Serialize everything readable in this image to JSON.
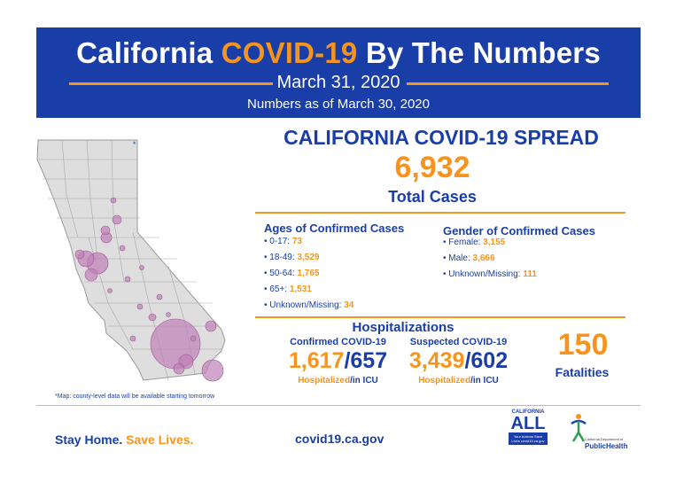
{
  "banner": {
    "title_pre": "California ",
    "title_highlight": "COVID-19",
    "title_post": " By The Numbers",
    "date": "March 31, 2020",
    "as_of": "Numbers as of March 30, 2020"
  },
  "spread": {
    "title": "CALIFORNIA COVID-19 SPREAD",
    "total_cases": "6,932",
    "total_label": "Total Cases"
  },
  "ages": {
    "heading": "Ages of Confirmed Cases",
    "items": [
      {
        "label": "• 0-17: ",
        "value": "73"
      },
      {
        "label": "• 18-49: ",
        "value": "3,529"
      },
      {
        "label": "• 50-64: ",
        "value": "1,765"
      },
      {
        "label": "• 65+: ",
        "value": "1,531"
      },
      {
        "label": "• Unknown/Missing: ",
        "value": "34"
      }
    ]
  },
  "gender": {
    "heading": "Gender of Confirmed Cases",
    "items": [
      {
        "label": "• Female: ",
        "value": "3,155"
      },
      {
        "label": "• Male: ",
        "value": "3,666"
      },
      {
        "label": "• Unknown/Missing: ",
        "value": "111"
      }
    ]
  },
  "hospitalizations": {
    "title": "Hospitalizations",
    "confirmed": {
      "label": "Confirmed COVID-19",
      "hospitalized": "1,617",
      "icu": "657",
      "caption_hosp": "Hospitalized",
      "caption_icu": "/in ICU"
    },
    "suspected": {
      "label": "Suspected COVID-19",
      "hospitalized": "3,439",
      "icu": "602",
      "caption_hosp": "Hospitalized",
      "caption_icu": "/in ICU"
    },
    "separator": "/"
  },
  "fatalities": {
    "count": "150",
    "label": "Fatalities"
  },
  "map": {
    "asterisk": "*",
    "note": "*Map: county-level data will be available starting tomorrow"
  },
  "footer": {
    "stay_home": "Stay Home. ",
    "save_lives": "Save Lives.",
    "url": "covid19.ca.gov",
    "logo_california": "CALIFORNIA",
    "logo_all": "ALL",
    "logo_all_tagline": "Your Actions Save Lives covid19.ca.gov",
    "logo_cdph_small": "California Department of",
    "logo_cdph_big": "PublicHealth"
  },
  "colors": {
    "primary_blue": "#1a3ea8",
    "accent_orange": "#f7941d",
    "map_bubble": "#c080b8",
    "map_fill": "#dedede"
  }
}
